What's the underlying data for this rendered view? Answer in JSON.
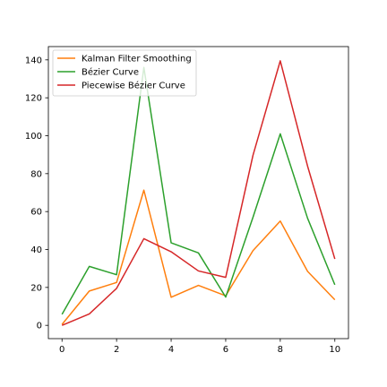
{
  "chart_data": {
    "type": "line",
    "title": "",
    "xlabel": "",
    "ylabel": "",
    "xlim": [
      -0.5,
      10.5
    ],
    "ylim": [
      -7,
      147
    ],
    "x_ticks": [
      0,
      2,
      4,
      6,
      8,
      10
    ],
    "y_ticks": [
      0,
      20,
      40,
      60,
      80,
      100,
      120,
      140
    ],
    "grid": false,
    "legend_position": "top-left",
    "x": [
      0,
      1,
      2,
      3,
      4,
      5,
      6,
      7,
      8,
      9,
      10
    ],
    "series": [
      {
        "name": "Kalman Filter Smoothing",
        "color": "#ff7f0e",
        "values": [
          0.5,
          18.1,
          22.6,
          71.3,
          14.8,
          21.1,
          15.6,
          39.4,
          55.0,
          28.5,
          13.5
        ]
      },
      {
        "name": "Bézier Curve",
        "color": "#2ca02c",
        "values": [
          5.8,
          31.1,
          26.7,
          136.0,
          43.5,
          38.2,
          14.9,
          57.0,
          101.0,
          56.5,
          21.4
        ]
      },
      {
        "name": "Piecewise Bézier Curve",
        "color": "#d62728",
        "values": [
          0.0,
          6.0,
          19.5,
          45.7,
          38.8,
          28.7,
          25.3,
          89.7,
          139.5,
          84.0,
          35.0
        ]
      }
    ]
  }
}
